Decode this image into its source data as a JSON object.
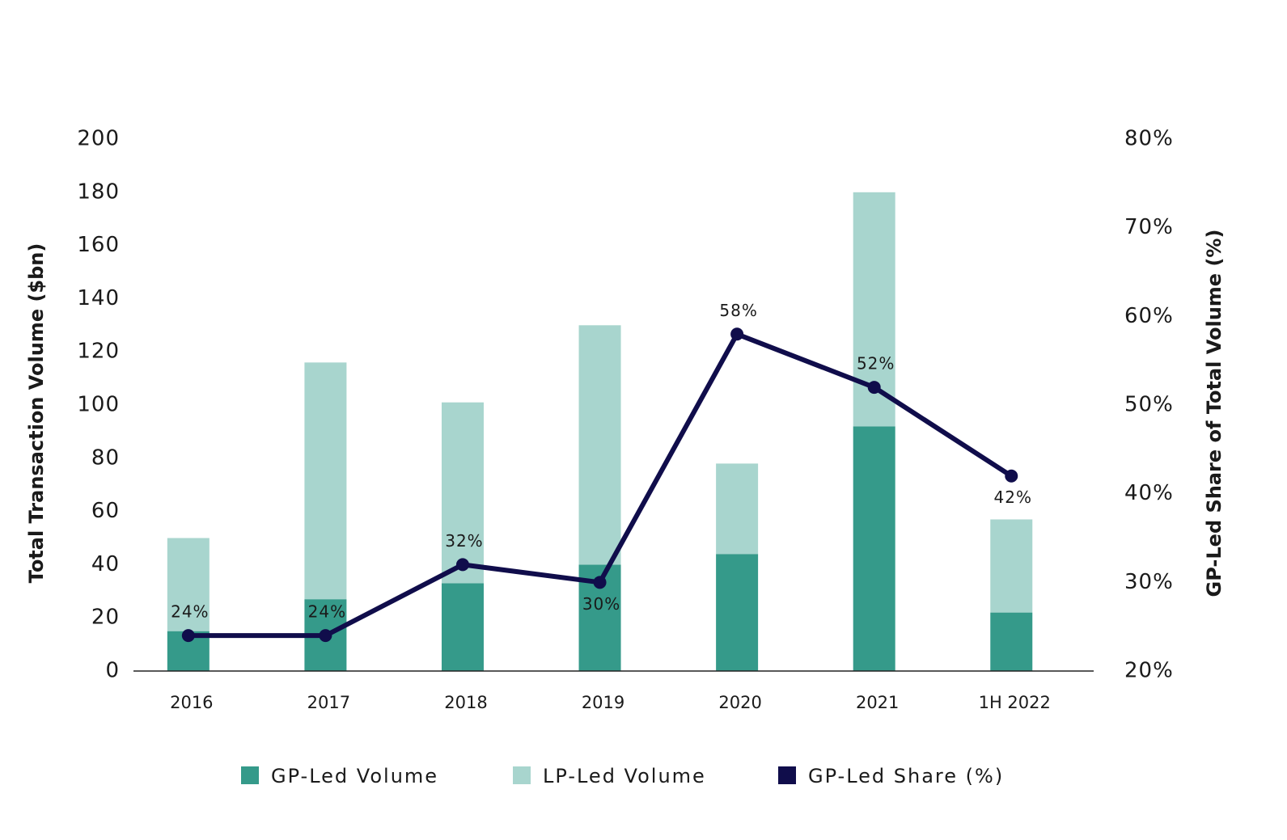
{
  "chart_data": {
    "type": "bar-line",
    "categories": [
      "2016",
      "2017",
      "2018",
      "2019",
      "2020",
      "2021",
      "1H 2022"
    ],
    "y_label": "Total Transaction Volume ($bn)",
    "y2_label": "GP-Led Share of Total Volume (%)",
    "ylim": [
      0,
      200
    ],
    "yticks": [
      0,
      20,
      40,
      60,
      80,
      100,
      120,
      140,
      160,
      180,
      200
    ],
    "y2lim": [
      20,
      80
    ],
    "y2ticks": [
      {
        "value": 20,
        "label": "20%"
      },
      {
        "value": 30,
        "label": "30%"
      },
      {
        "value": 40,
        "label": "40%"
      },
      {
        "value": 50,
        "label": "50%"
      },
      {
        "value": 60,
        "label": "60%"
      },
      {
        "value": 70,
        "label": "70%"
      },
      {
        "value": 80,
        "label": "80%"
      }
    ],
    "legend": "bottom",
    "series": [
      {
        "name": "GP-Led Volume",
        "type": "bar",
        "color": "#359a8a",
        "values": [
          15,
          27,
          33,
          40,
          44,
          92,
          22
        ]
      },
      {
        "name": "LP-Led Volume",
        "type": "bar",
        "color": "#a8d5ce",
        "values": [
          35,
          89,
          68,
          90,
          34,
          88,
          35
        ]
      },
      {
        "name": "GP-Led Share (%)",
        "type": "line",
        "axis": "y2",
        "color": "#100d4b",
        "values": [
          24,
          24,
          32,
          30,
          58,
          52,
          42
        ],
        "value_labels": [
          "24%",
          "24%",
          "32%",
          "30%",
          "58%",
          "52%",
          "42%"
        ]
      }
    ]
  }
}
